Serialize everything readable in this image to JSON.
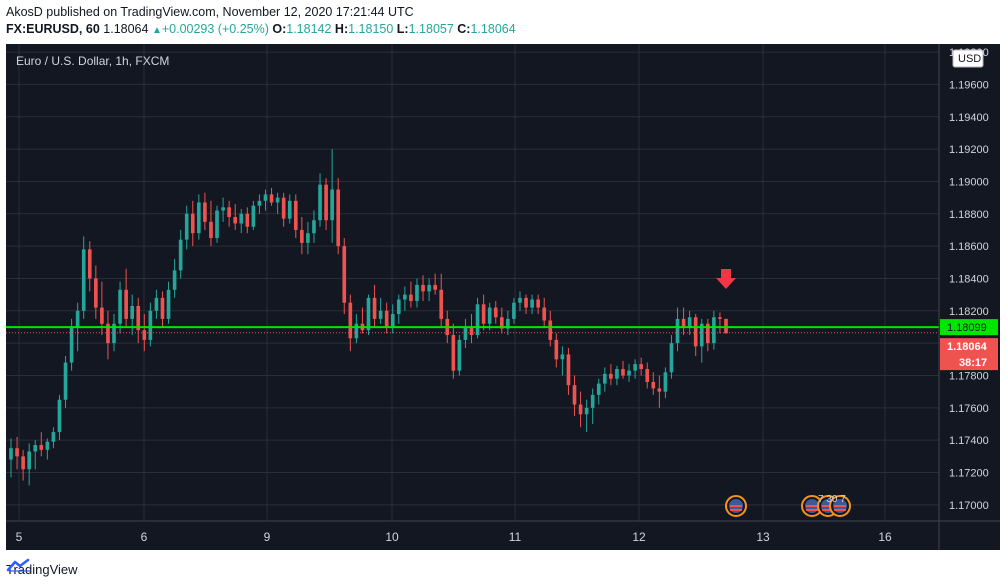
{
  "header": {
    "published": "AkosD published on TradingView.com, November 12, 2020 17:21:44 UTC",
    "symbol": "FX:EURUSD, 60",
    "last": "1.18064",
    "change": "+0.00293 (+0.25%)",
    "o_label": "O:",
    "o": "1.18142",
    "h_label": "H:",
    "h": "1.18150",
    "l_label": "L:",
    "l": "1.18057",
    "c_label": "C:",
    "c": "1.18064"
  },
  "footer": {
    "brand": "TradingView"
  },
  "chart_data": {
    "type": "candlestick",
    "title": "Euro / U.S. Dollar, 1h, FXCM",
    "currency_label": "USD",
    "ylim": [
      1.169,
      1.1985
    ],
    "y_ticks": [
      "1.17000",
      "1.17200",
      "1.17400",
      "1.17600",
      "1.17800",
      "1.18000",
      "1.18200",
      "1.18400",
      "1.18600",
      "1.18800",
      "1.19000",
      "1.19200",
      "1.19400",
      "1.19600",
      "1.19800"
    ],
    "x_ticks": [
      "5",
      "6",
      "9",
      "10",
      "11",
      "12",
      "13",
      "16"
    ],
    "horizontal_line": {
      "value": 1.18099,
      "label": "1.18099",
      "color": "#00e600"
    },
    "last_price": {
      "value": 1.18064,
      "label": "1.18064",
      "countdown": "38:17",
      "color": "#ef5350"
    },
    "event_labels": [
      "7",
      "30",
      "7"
    ],
    "up_color": "#26a69a",
    "down_color": "#ef5350",
    "grid": true,
    "candles": [
      {
        "o": 1.1728,
        "h": 1.1741,
        "l": 1.1717,
        "c": 1.1735
      },
      {
        "o": 1.1735,
        "h": 1.1742,
        "l": 1.1722,
        "c": 1.173
      },
      {
        "o": 1.173,
        "h": 1.1734,
        "l": 1.1715,
        "c": 1.1722
      },
      {
        "o": 1.1722,
        "h": 1.1738,
        "l": 1.1712,
        "c": 1.1733
      },
      {
        "o": 1.1733,
        "h": 1.174,
        "l": 1.1722,
        "c": 1.1737
      },
      {
        "o": 1.1737,
        "h": 1.1745,
        "l": 1.173,
        "c": 1.1734
      },
      {
        "o": 1.1734,
        "h": 1.1741,
        "l": 1.1728,
        "c": 1.1739
      },
      {
        "o": 1.1739,
        "h": 1.1748,
        "l": 1.1735,
        "c": 1.1745
      },
      {
        "o": 1.1745,
        "h": 1.1768,
        "l": 1.174,
        "c": 1.1765
      },
      {
        "o": 1.1765,
        "h": 1.1792,
        "l": 1.176,
        "c": 1.1788
      },
      {
        "o": 1.1788,
        "h": 1.1815,
        "l": 1.1783,
        "c": 1.181
      },
      {
        "o": 1.181,
        "h": 1.1825,
        "l": 1.1795,
        "c": 1.182
      },
      {
        "o": 1.182,
        "h": 1.1866,
        "l": 1.1815,
        "c": 1.1858
      },
      {
        "o": 1.1858,
        "h": 1.1863,
        "l": 1.1832,
        "c": 1.184
      },
      {
        "o": 1.184,
        "h": 1.1848,
        "l": 1.1815,
        "c": 1.1822
      },
      {
        "o": 1.1822,
        "h": 1.1838,
        "l": 1.1805,
        "c": 1.1812
      },
      {
        "o": 1.1812,
        "h": 1.182,
        "l": 1.179,
        "c": 1.18
      },
      {
        "o": 1.18,
        "h": 1.1818,
        "l": 1.1795,
        "c": 1.1812
      },
      {
        "o": 1.1812,
        "h": 1.1838,
        "l": 1.1806,
        "c": 1.1833
      },
      {
        "o": 1.1833,
        "h": 1.1846,
        "l": 1.181,
        "c": 1.1815
      },
      {
        "o": 1.1815,
        "h": 1.183,
        "l": 1.1805,
        "c": 1.1823
      },
      {
        "o": 1.1823,
        "h": 1.1828,
        "l": 1.18,
        "c": 1.1808
      },
      {
        "o": 1.1808,
        "h": 1.1818,
        "l": 1.1795,
        "c": 1.1802
      },
      {
        "o": 1.1802,
        "h": 1.1825,
        "l": 1.1798,
        "c": 1.182
      },
      {
        "o": 1.182,
        "h": 1.1833,
        "l": 1.1815,
        "c": 1.1828
      },
      {
        "o": 1.1828,
        "h": 1.1832,
        "l": 1.181,
        "c": 1.1815
      },
      {
        "o": 1.1815,
        "h": 1.1838,
        "l": 1.1812,
        "c": 1.1833
      },
      {
        "o": 1.1833,
        "h": 1.1852,
        "l": 1.1828,
        "c": 1.1845
      },
      {
        "o": 1.1845,
        "h": 1.187,
        "l": 1.184,
        "c": 1.1864
      },
      {
        "o": 1.1864,
        "h": 1.1885,
        "l": 1.1858,
        "c": 1.188
      },
      {
        "o": 1.188,
        "h": 1.1888,
        "l": 1.186,
        "c": 1.1868
      },
      {
        "o": 1.1868,
        "h": 1.1892,
        "l": 1.1864,
        "c": 1.1887
      },
      {
        "o": 1.1887,
        "h": 1.1893,
        "l": 1.187,
        "c": 1.1875
      },
      {
        "o": 1.1875,
        "h": 1.1888,
        "l": 1.186,
        "c": 1.1865
      },
      {
        "o": 1.1865,
        "h": 1.1885,
        "l": 1.1862,
        "c": 1.1882
      },
      {
        "o": 1.1882,
        "h": 1.189,
        "l": 1.1875,
        "c": 1.1884
      },
      {
        "o": 1.1884,
        "h": 1.1888,
        "l": 1.1872,
        "c": 1.1878
      },
      {
        "o": 1.1878,
        "h": 1.1886,
        "l": 1.187,
        "c": 1.1874
      },
      {
        "o": 1.1874,
        "h": 1.1883,
        "l": 1.1868,
        "c": 1.188
      },
      {
        "o": 1.188,
        "h": 1.1884,
        "l": 1.1868,
        "c": 1.1872
      },
      {
        "o": 1.1872,
        "h": 1.1888,
        "l": 1.187,
        "c": 1.1885
      },
      {
        "o": 1.1885,
        "h": 1.1892,
        "l": 1.188,
        "c": 1.1888
      },
      {
        "o": 1.1888,
        "h": 1.1895,
        "l": 1.1882,
        "c": 1.1892
      },
      {
        "o": 1.1892,
        "h": 1.1896,
        "l": 1.1885,
        "c": 1.1887
      },
      {
        "o": 1.1887,
        "h": 1.1893,
        "l": 1.188,
        "c": 1.189
      },
      {
        "o": 1.189,
        "h": 1.1893,
        "l": 1.1872,
        "c": 1.1877
      },
      {
        "o": 1.1877,
        "h": 1.1892,
        "l": 1.1874,
        "c": 1.1888
      },
      {
        "o": 1.1888,
        "h": 1.1892,
        "l": 1.1865,
        "c": 1.187
      },
      {
        "o": 1.187,
        "h": 1.1878,
        "l": 1.1855,
        "c": 1.1862
      },
      {
        "o": 1.1862,
        "h": 1.1875,
        "l": 1.1855,
        "c": 1.1868
      },
      {
        "o": 1.1868,
        "h": 1.1882,
        "l": 1.1862,
        "c": 1.1876
      },
      {
        "o": 1.1876,
        "h": 1.1905,
        "l": 1.1872,
        "c": 1.1898
      },
      {
        "o": 1.1898,
        "h": 1.1902,
        "l": 1.187,
        "c": 1.1876
      },
      {
        "o": 1.1876,
        "h": 1.192,
        "l": 1.1862,
        "c": 1.1895
      },
      {
        "o": 1.1895,
        "h": 1.1902,
        "l": 1.1855,
        "c": 1.186
      },
      {
        "o": 1.186,
        "h": 1.1865,
        "l": 1.1818,
        "c": 1.1825
      },
      {
        "o": 1.1825,
        "h": 1.183,
        "l": 1.1795,
        "c": 1.1803
      },
      {
        "o": 1.1803,
        "h": 1.1818,
        "l": 1.18,
        "c": 1.1812
      },
      {
        "o": 1.1812,
        "h": 1.1822,
        "l": 1.1806,
        "c": 1.1808
      },
      {
        "o": 1.1808,
        "h": 1.183,
        "l": 1.1805,
        "c": 1.1828
      },
      {
        "o": 1.1828,
        "h": 1.1836,
        "l": 1.181,
        "c": 1.1815
      },
      {
        "o": 1.1815,
        "h": 1.1828,
        "l": 1.1812,
        "c": 1.182
      },
      {
        "o": 1.182,
        "h": 1.1825,
        "l": 1.1806,
        "c": 1.181
      },
      {
        "o": 1.181,
        "h": 1.1824,
        "l": 1.1806,
        "c": 1.1818
      },
      {
        "o": 1.1818,
        "h": 1.183,
        "l": 1.1812,
        "c": 1.1827
      },
      {
        "o": 1.1827,
        "h": 1.1835,
        "l": 1.182,
        "c": 1.183
      },
      {
        "o": 1.183,
        "h": 1.1838,
        "l": 1.1822,
        "c": 1.1826
      },
      {
        "o": 1.1826,
        "h": 1.184,
        "l": 1.1822,
        "c": 1.1836
      },
      {
        "o": 1.1836,
        "h": 1.1842,
        "l": 1.1826,
        "c": 1.1832
      },
      {
        "o": 1.1832,
        "h": 1.184,
        "l": 1.1826,
        "c": 1.1836
      },
      {
        "o": 1.1836,
        "h": 1.1843,
        "l": 1.183,
        "c": 1.1833
      },
      {
        "o": 1.1833,
        "h": 1.1843,
        "l": 1.181,
        "c": 1.1815
      },
      {
        "o": 1.1815,
        "h": 1.182,
        "l": 1.18,
        "c": 1.1805
      },
      {
        "o": 1.1805,
        "h": 1.1812,
        "l": 1.1778,
        "c": 1.1783
      },
      {
        "o": 1.1783,
        "h": 1.1805,
        "l": 1.178,
        "c": 1.1802
      },
      {
        "o": 1.1802,
        "h": 1.1815,
        "l": 1.1797,
        "c": 1.181
      },
      {
        "o": 1.181,
        "h": 1.1818,
        "l": 1.18,
        "c": 1.1805
      },
      {
        "o": 1.1805,
        "h": 1.1828,
        "l": 1.1803,
        "c": 1.1824
      },
      {
        "o": 1.1824,
        "h": 1.183,
        "l": 1.1808,
        "c": 1.1812
      },
      {
        "o": 1.1812,
        "h": 1.1825,
        "l": 1.1808,
        "c": 1.1822
      },
      {
        "o": 1.1822,
        "h": 1.1826,
        "l": 1.1812,
        "c": 1.1816
      },
      {
        "o": 1.1816,
        "h": 1.1822,
        "l": 1.1806,
        "c": 1.1809
      },
      {
        "o": 1.1809,
        "h": 1.182,
        "l": 1.1805,
        "c": 1.1815
      },
      {
        "o": 1.1815,
        "h": 1.1828,
        "l": 1.1812,
        "c": 1.1825
      },
      {
        "o": 1.1825,
        "h": 1.1832,
        "l": 1.182,
        "c": 1.1828
      },
      {
        "o": 1.1828,
        "h": 1.183,
        "l": 1.1818,
        "c": 1.1822
      },
      {
        "o": 1.1822,
        "h": 1.183,
        "l": 1.1818,
        "c": 1.1827
      },
      {
        "o": 1.1827,
        "h": 1.183,
        "l": 1.1818,
        "c": 1.1822
      },
      {
        "o": 1.1822,
        "h": 1.1828,
        "l": 1.181,
        "c": 1.1814
      },
      {
        "o": 1.1814,
        "h": 1.182,
        "l": 1.1798,
        "c": 1.1802
      },
      {
        "o": 1.1802,
        "h": 1.1806,
        "l": 1.1785,
        "c": 1.179
      },
      {
        "o": 1.179,
        "h": 1.1798,
        "l": 1.178,
        "c": 1.1793
      },
      {
        "o": 1.1793,
        "h": 1.1797,
        "l": 1.1768,
        "c": 1.1774
      },
      {
        "o": 1.1774,
        "h": 1.178,
        "l": 1.1755,
        "c": 1.1762
      },
      {
        "o": 1.1762,
        "h": 1.177,
        "l": 1.1748,
        "c": 1.1756
      },
      {
        "o": 1.1756,
        "h": 1.1765,
        "l": 1.1745,
        "c": 1.176
      },
      {
        "o": 1.176,
        "h": 1.1772,
        "l": 1.175,
        "c": 1.1768
      },
      {
        "o": 1.1768,
        "h": 1.1778,
        "l": 1.1762,
        "c": 1.1775
      },
      {
        "o": 1.1775,
        "h": 1.1785,
        "l": 1.177,
        "c": 1.1781
      },
      {
        "o": 1.1781,
        "h": 1.1787,
        "l": 1.1774,
        "c": 1.1778
      },
      {
        "o": 1.1778,
        "h": 1.1786,
        "l": 1.1774,
        "c": 1.1784
      },
      {
        "o": 1.1784,
        "h": 1.1789,
        "l": 1.1778,
        "c": 1.178
      },
      {
        "o": 1.178,
        "h": 1.1787,
        "l": 1.1776,
        "c": 1.1783
      },
      {
        "o": 1.1783,
        "h": 1.179,
        "l": 1.1778,
        "c": 1.1787
      },
      {
        "o": 1.1787,
        "h": 1.1791,
        "l": 1.178,
        "c": 1.1784
      },
      {
        "o": 1.1784,
        "h": 1.1788,
        "l": 1.1772,
        "c": 1.1776
      },
      {
        "o": 1.1776,
        "h": 1.1782,
        "l": 1.1768,
        "c": 1.1772
      },
      {
        "o": 1.1772,
        "h": 1.178,
        "l": 1.176,
        "c": 1.177
      },
      {
        "o": 1.177,
        "h": 1.1785,
        "l": 1.1766,
        "c": 1.1782
      },
      {
        "o": 1.1782,
        "h": 1.1805,
        "l": 1.1778,
        "c": 1.18
      },
      {
        "o": 1.18,
        "h": 1.1822,
        "l": 1.1795,
        "c": 1.1815
      },
      {
        "o": 1.1815,
        "h": 1.1822,
        "l": 1.1805,
        "c": 1.181
      },
      {
        "o": 1.181,
        "h": 1.182,
        "l": 1.1805,
        "c": 1.1816
      },
      {
        "o": 1.1816,
        "h": 1.1818,
        "l": 1.1792,
        "c": 1.1798
      },
      {
        "o": 1.1798,
        "h": 1.1815,
        "l": 1.1788,
        "c": 1.1812
      },
      {
        "o": 1.1812,
        "h": 1.1815,
        "l": 1.1795,
        "c": 1.18
      },
      {
        "o": 1.18,
        "h": 1.182,
        "l": 1.1796,
        "c": 1.1816
      },
      {
        "o": 1.1816,
        "h": 1.1819,
        "l": 1.1806,
        "c": 1.1815
      },
      {
        "o": 1.1815,
        "h": 1.1815,
        "l": 1.1806,
        "c": 1.1806
      }
    ]
  }
}
